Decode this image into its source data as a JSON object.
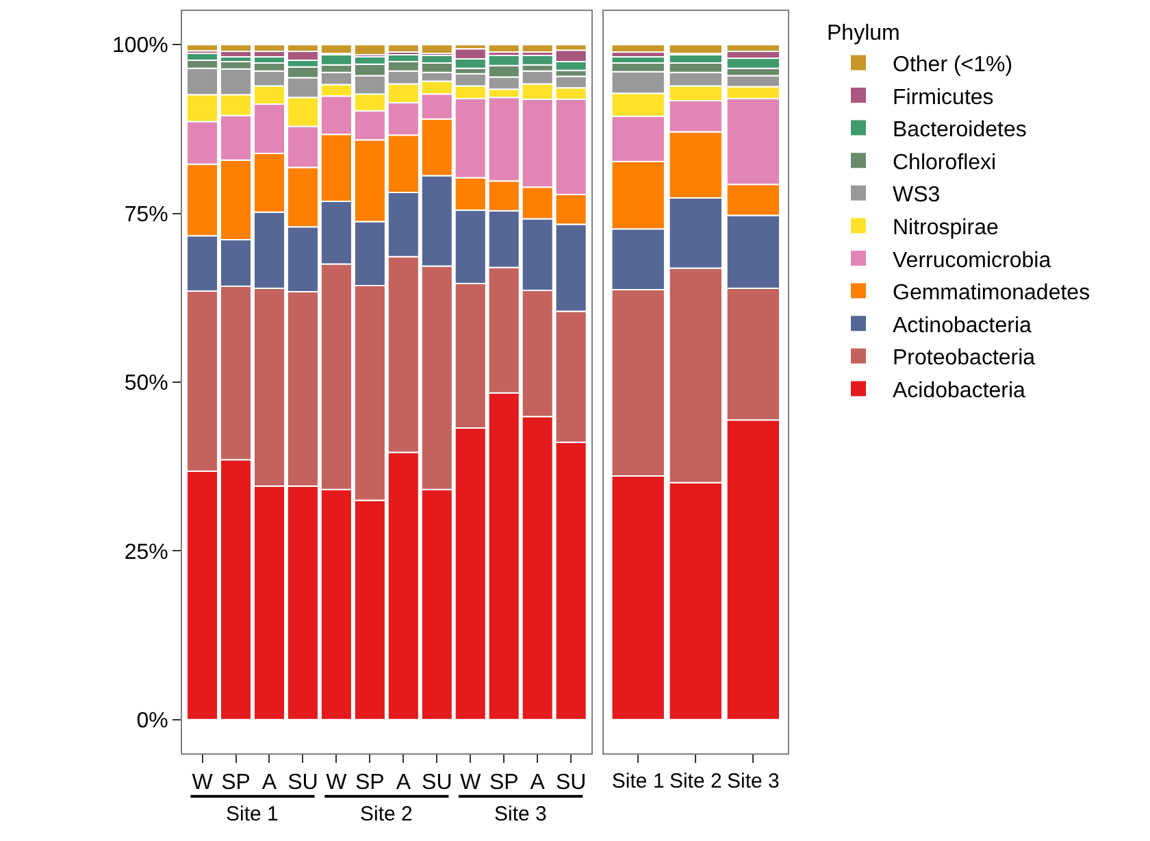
{
  "chart_data": [
    {
      "type": "bar",
      "stacked": true,
      "categories": [
        "W",
        "SP",
        "A",
        "SU",
        "W",
        "SP",
        "A",
        "SU",
        "W",
        "SP",
        "A",
        "SU"
      ],
      "annotations": [
        "Site 1",
        "Site 2",
        "Site 3"
      ],
      "ylim": [
        -5,
        105
      ],
      "yticks": [
        {
          "value": 0,
          "label": "0%"
        },
        {
          "value": 25,
          "label": "25%"
        },
        {
          "value": 50,
          "label": "50%"
        },
        {
          "value": 75,
          "label": "75%"
        },
        {
          "value": 100,
          "label": "100%"
        }
      ],
      "legend": "right",
      "legend_title": "Phylum",
      "series": [
        {
          "name": "Acidobacteria",
          "color": "#e41a1c",
          "values": [
            36.8,
            38.5,
            34.6,
            34.6,
            34.1,
            32.5,
            39.6,
            34.1,
            43.2,
            48.4,
            44.9,
            41.1
          ]
        },
        {
          "name": "Proteobacteria",
          "color": "#c4625e",
          "values": [
            26.7,
            25.7,
            29.3,
            28.8,
            33.4,
            31.8,
            29.0,
            33.1,
            21.4,
            18.6,
            18.7,
            19.4
          ]
        },
        {
          "name": "Actinobacteria",
          "color": "#566796",
          "values": [
            8.2,
            6.9,
            11.3,
            9.6,
            9.3,
            9.5,
            9.5,
            13.4,
            10.9,
            8.4,
            10.6,
            12.9
          ]
        },
        {
          "name": "Gemmatimonadetes",
          "color": "#ff7f00",
          "values": [
            10.6,
            11.8,
            8.7,
            8.8,
            9.9,
            12.1,
            8.5,
            8.4,
            4.8,
            4.4,
            4.7,
            4.4
          ]
        },
        {
          "name": "Verrucomicrobia",
          "color": "#e285b5",
          "values": [
            6.3,
            6.6,
            7.3,
            6.1,
            5.7,
            4.3,
            4.8,
            3.7,
            11.7,
            12.4,
            13.0,
            14.1
          ]
        },
        {
          "name": "Nitrospirae",
          "color": "#ffe12a",
          "values": [
            4.0,
            3.1,
            2.7,
            4.3,
            1.7,
            2.5,
            2.8,
            1.9,
            1.9,
            1.2,
            2.3,
            1.7
          ]
        },
        {
          "name": "WS3",
          "color": "#999999",
          "values": [
            3.9,
            3.8,
            2.2,
            2.9,
            1.8,
            2.7,
            1.9,
            1.3,
            1.8,
            1.8,
            1.9,
            1.7
          ]
        },
        {
          "name": "Chloroflexi",
          "color": "#6a8a6c",
          "values": [
            1.2,
            1.1,
            1.2,
            1.6,
            1.1,
            1.7,
            1.4,
            1.4,
            0.8,
            1.7,
            0.9,
            0.9
          ]
        },
        {
          "name": "Bacteroidetes",
          "color": "#3f9a6e",
          "values": [
            1.0,
            0.7,
            0.9,
            1.0,
            1.5,
            1.1,
            1.0,
            1.1,
            1.4,
            1.5,
            1.4,
            1.3
          ]
        },
        {
          "name": "Firmicutes",
          "color": "#a8577e",
          "values": [
            0.4,
            0.8,
            0.8,
            1.3,
            0.2,
            0.3,
            0.4,
            0.3,
            1.5,
            0.5,
            0.5,
            1.7
          ]
        },
        {
          "name": "Other (<1%)",
          "color": "#c8972a",
          "values": [
            0.9,
            1.0,
            1.0,
            1.0,
            1.3,
            1.5,
            1.1,
            1.3,
            0.6,
            1.1,
            1.1,
            0.8
          ]
        }
      ]
    },
    {
      "type": "bar",
      "stacked": true,
      "categories": [
        "Site 1",
        "Site 2",
        "Site 3"
      ],
      "ylim": [
        -5,
        105
      ],
      "tick_labels": "x",
      "series": [
        {
          "color": "#e41a1c",
          "values": [
            36.1,
            35.1,
            44.4
          ]
        },
        {
          "color": "#c4625e",
          "values": [
            27.6,
            31.8,
            19.5
          ]
        },
        {
          "color": "#566796",
          "values": [
            9.0,
            10.4,
            10.8
          ]
        },
        {
          "color": "#ff7f00",
          "values": [
            10.0,
            9.8,
            4.6
          ]
        },
        {
          "color": "#e285b5",
          "values": [
            6.7,
            4.6,
            12.7
          ]
        },
        {
          "color": "#ffe12a",
          "values": [
            3.4,
            2.2,
            1.8
          ]
        },
        {
          "color": "#999999",
          "values": [
            3.2,
            2.0,
            1.6
          ]
        },
        {
          "color": "#6a8a6c",
          "values": [
            1.3,
            1.4,
            1.1
          ]
        },
        {
          "color": "#3f9a6e",
          "values": [
            0.9,
            1.2,
            1.5
          ]
        },
        {
          "color": "#a8577e",
          "values": [
            0.7,
            0.2,
            1.0
          ]
        },
        {
          "color": "#c8972a",
          "values": [
            1.1,
            1.3,
            1.0
          ]
        }
      ]
    }
  ]
}
